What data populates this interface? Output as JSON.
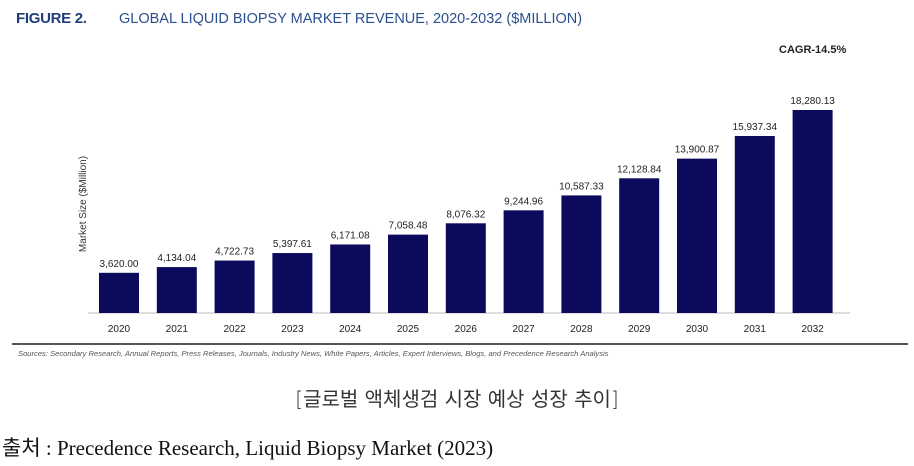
{
  "figure_label": "FIGURE 2.",
  "chart_data": {
    "type": "bar",
    "title": "GLOBAL LIQUID BIOPSY MARKET REVENUE, 2020-2032 ($MILLION)",
    "annotation": "CAGR-14.5%",
    "xlabel": "",
    "ylabel": "Market Size ($Million)",
    "categories": [
      "2020",
      "2021",
      "2022",
      "2023",
      "2024",
      "2025",
      "2026",
      "2027",
      "2028",
      "2029",
      "2030",
      "2031",
      "2032"
    ],
    "values": [
      3620.0,
      4134.04,
      4722.73,
      5397.61,
      6171.08,
      7058.48,
      8076.32,
      9244.96,
      10587.33,
      12128.84,
      13900.87,
      15937.34,
      18280.13
    ],
    "data_labels": [
      "3,620.00",
      "4,134.04",
      "4,722.73",
      "5,397.61",
      "6,171.08",
      "7,058.48",
      "8,076.32",
      "9,244.96",
      "10,587.33",
      "12,128.84",
      "13,900.87",
      "15,937.34",
      "18,280.13"
    ],
    "ylim": [
      0,
      18280.13
    ],
    "grid": false,
    "bar_color": "#0b0a5c"
  },
  "sources": "Sources: Secondary Research, Annual Reports, Press Releases, Journals, Industry News, White Papers, Articles, Expert Interviews, Blogs, and Precedence Research Analysis",
  "caption": "[글로벌 액체생검 시장 예상 성장 추이]",
  "source_line": "출처 : Precedence Research, Liquid Biopsy Market (2023)"
}
